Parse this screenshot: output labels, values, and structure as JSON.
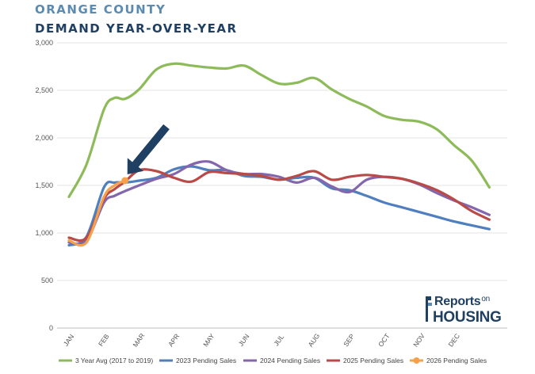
{
  "header": {
    "line1": "ORANGE COUNTY",
    "line2": "DEMAND YEAR-OVER-YEAR"
  },
  "logo": {
    "word1": "Reports",
    "word2": "on",
    "word3": "HOUSING"
  },
  "chart_data": {
    "type": "line",
    "title": "",
    "xlabel": "",
    "ylabel": "",
    "ylim": [
      0,
      3000
    ],
    "yticks": [
      0,
      500,
      1000,
      1500,
      2000,
      2500,
      3000
    ],
    "ytick_labels": [
      "0",
      "500",
      "1,000",
      "1,500",
      "2,000",
      "2,500",
      "3,000"
    ],
    "xticks": [
      "JAN",
      "FEB",
      "MAR",
      "APR",
      "MAY",
      "JUN",
      "JUL",
      "AUG",
      "SEP",
      "OCT",
      "NOV",
      "DEC"
    ],
    "x_range": [
      1,
      13.8
    ],
    "legend_position": "bottom",
    "grid": "horizontal",
    "series": [
      {
        "name": "3 Year Avg (2017 to 2019)",
        "color": "#8dbb5a",
        "points": [
          [
            1,
            1380
          ],
          [
            1.5,
            1720
          ],
          [
            2,
            2300
          ],
          [
            2.3,
            2420
          ],
          [
            2.6,
            2410
          ],
          [
            3,
            2510
          ],
          [
            3.5,
            2720
          ],
          [
            4,
            2780
          ],
          [
            4.5,
            2760
          ],
          [
            5,
            2740
          ],
          [
            5.5,
            2730
          ],
          [
            6,
            2760
          ],
          [
            6.5,
            2660
          ],
          [
            7,
            2570
          ],
          [
            7.5,
            2580
          ],
          [
            8,
            2630
          ],
          [
            8.5,
            2510
          ],
          [
            9,
            2410
          ],
          [
            9.5,
            2330
          ],
          [
            10,
            2230
          ],
          [
            10.5,
            2190
          ],
          [
            11,
            2170
          ],
          [
            11.5,
            2090
          ],
          [
            12,
            1920
          ],
          [
            12.5,
            1760
          ],
          [
            13,
            1480
          ]
        ]
      },
      {
        "name": "2023 Pending Sales",
        "color": "#4f7fbf",
        "points": [
          [
            1,
            870
          ],
          [
            1.5,
            960
          ],
          [
            2,
            1480
          ],
          [
            2.3,
            1530
          ],
          [
            2.6,
            1530
          ],
          [
            3,
            1550
          ],
          [
            3.5,
            1580
          ],
          [
            4,
            1670
          ],
          [
            4.5,
            1700
          ],
          [
            5,
            1660
          ],
          [
            5.5,
            1660
          ],
          [
            6,
            1600
          ],
          [
            6.5,
            1590
          ],
          [
            7,
            1560
          ],
          [
            7.5,
            1580
          ],
          [
            8,
            1580
          ],
          [
            8.5,
            1470
          ],
          [
            9,
            1450
          ],
          [
            9.5,
            1390
          ],
          [
            10,
            1320
          ],
          [
            10.5,
            1270
          ],
          [
            11,
            1220
          ],
          [
            11.5,
            1170
          ],
          [
            12,
            1120
          ],
          [
            12.5,
            1080
          ],
          [
            13,
            1040
          ]
        ]
      },
      {
        "name": "2024 Pending Sales",
        "color": "#8466ad",
        "points": [
          [
            1,
            900
          ],
          [
            1.5,
            920
          ],
          [
            2,
            1320
          ],
          [
            2.3,
            1390
          ],
          [
            2.6,
            1440
          ],
          [
            3,
            1500
          ],
          [
            3.5,
            1570
          ],
          [
            4,
            1620
          ],
          [
            4.5,
            1720
          ],
          [
            5,
            1750
          ],
          [
            5.5,
            1660
          ],
          [
            6,
            1620
          ],
          [
            6.5,
            1620
          ],
          [
            7,
            1590
          ],
          [
            7.5,
            1530
          ],
          [
            8,
            1580
          ],
          [
            8.5,
            1490
          ],
          [
            9,
            1430
          ],
          [
            9.5,
            1560
          ],
          [
            10,
            1590
          ],
          [
            10.5,
            1570
          ],
          [
            11,
            1510
          ],
          [
            11.5,
            1420
          ],
          [
            12,
            1340
          ],
          [
            12.5,
            1270
          ],
          [
            13,
            1190
          ]
        ]
      },
      {
        "name": "2025 Pending Sales",
        "color": "#b94a48",
        "points": [
          [
            1,
            950
          ],
          [
            1.5,
            950
          ],
          [
            2,
            1360
          ],
          [
            2.3,
            1460
          ],
          [
            2.6,
            1540
          ],
          [
            3,
            1660
          ],
          [
            3.5,
            1650
          ],
          [
            4,
            1580
          ],
          [
            4.5,
            1540
          ],
          [
            5,
            1640
          ],
          [
            5.5,
            1630
          ],
          [
            6,
            1620
          ],
          [
            6.5,
            1600
          ],
          [
            7,
            1560
          ],
          [
            7.5,
            1600
          ],
          [
            8,
            1650
          ],
          [
            8.5,
            1560
          ],
          [
            9,
            1590
          ],
          [
            9.5,
            1610
          ],
          [
            10,
            1590
          ],
          [
            10.5,
            1570
          ],
          [
            11,
            1520
          ],
          [
            11.5,
            1450
          ],
          [
            12,
            1350
          ],
          [
            12.5,
            1230
          ],
          [
            13,
            1140
          ]
        ]
      },
      {
        "name": "2026 Pending Sales",
        "color": "#f5a04a",
        "points": [
          [
            1,
            920
          ],
          [
            1.5,
            900
          ],
          [
            2,
            1380
          ],
          [
            2.3,
            1500
          ],
          [
            2.6,
            1550
          ]
        ],
        "marker_last": true
      }
    ],
    "annotation": {
      "type": "arrow",
      "color": "#1f3f63",
      "points_to": [
        2.6,
        1550
      ]
    }
  }
}
